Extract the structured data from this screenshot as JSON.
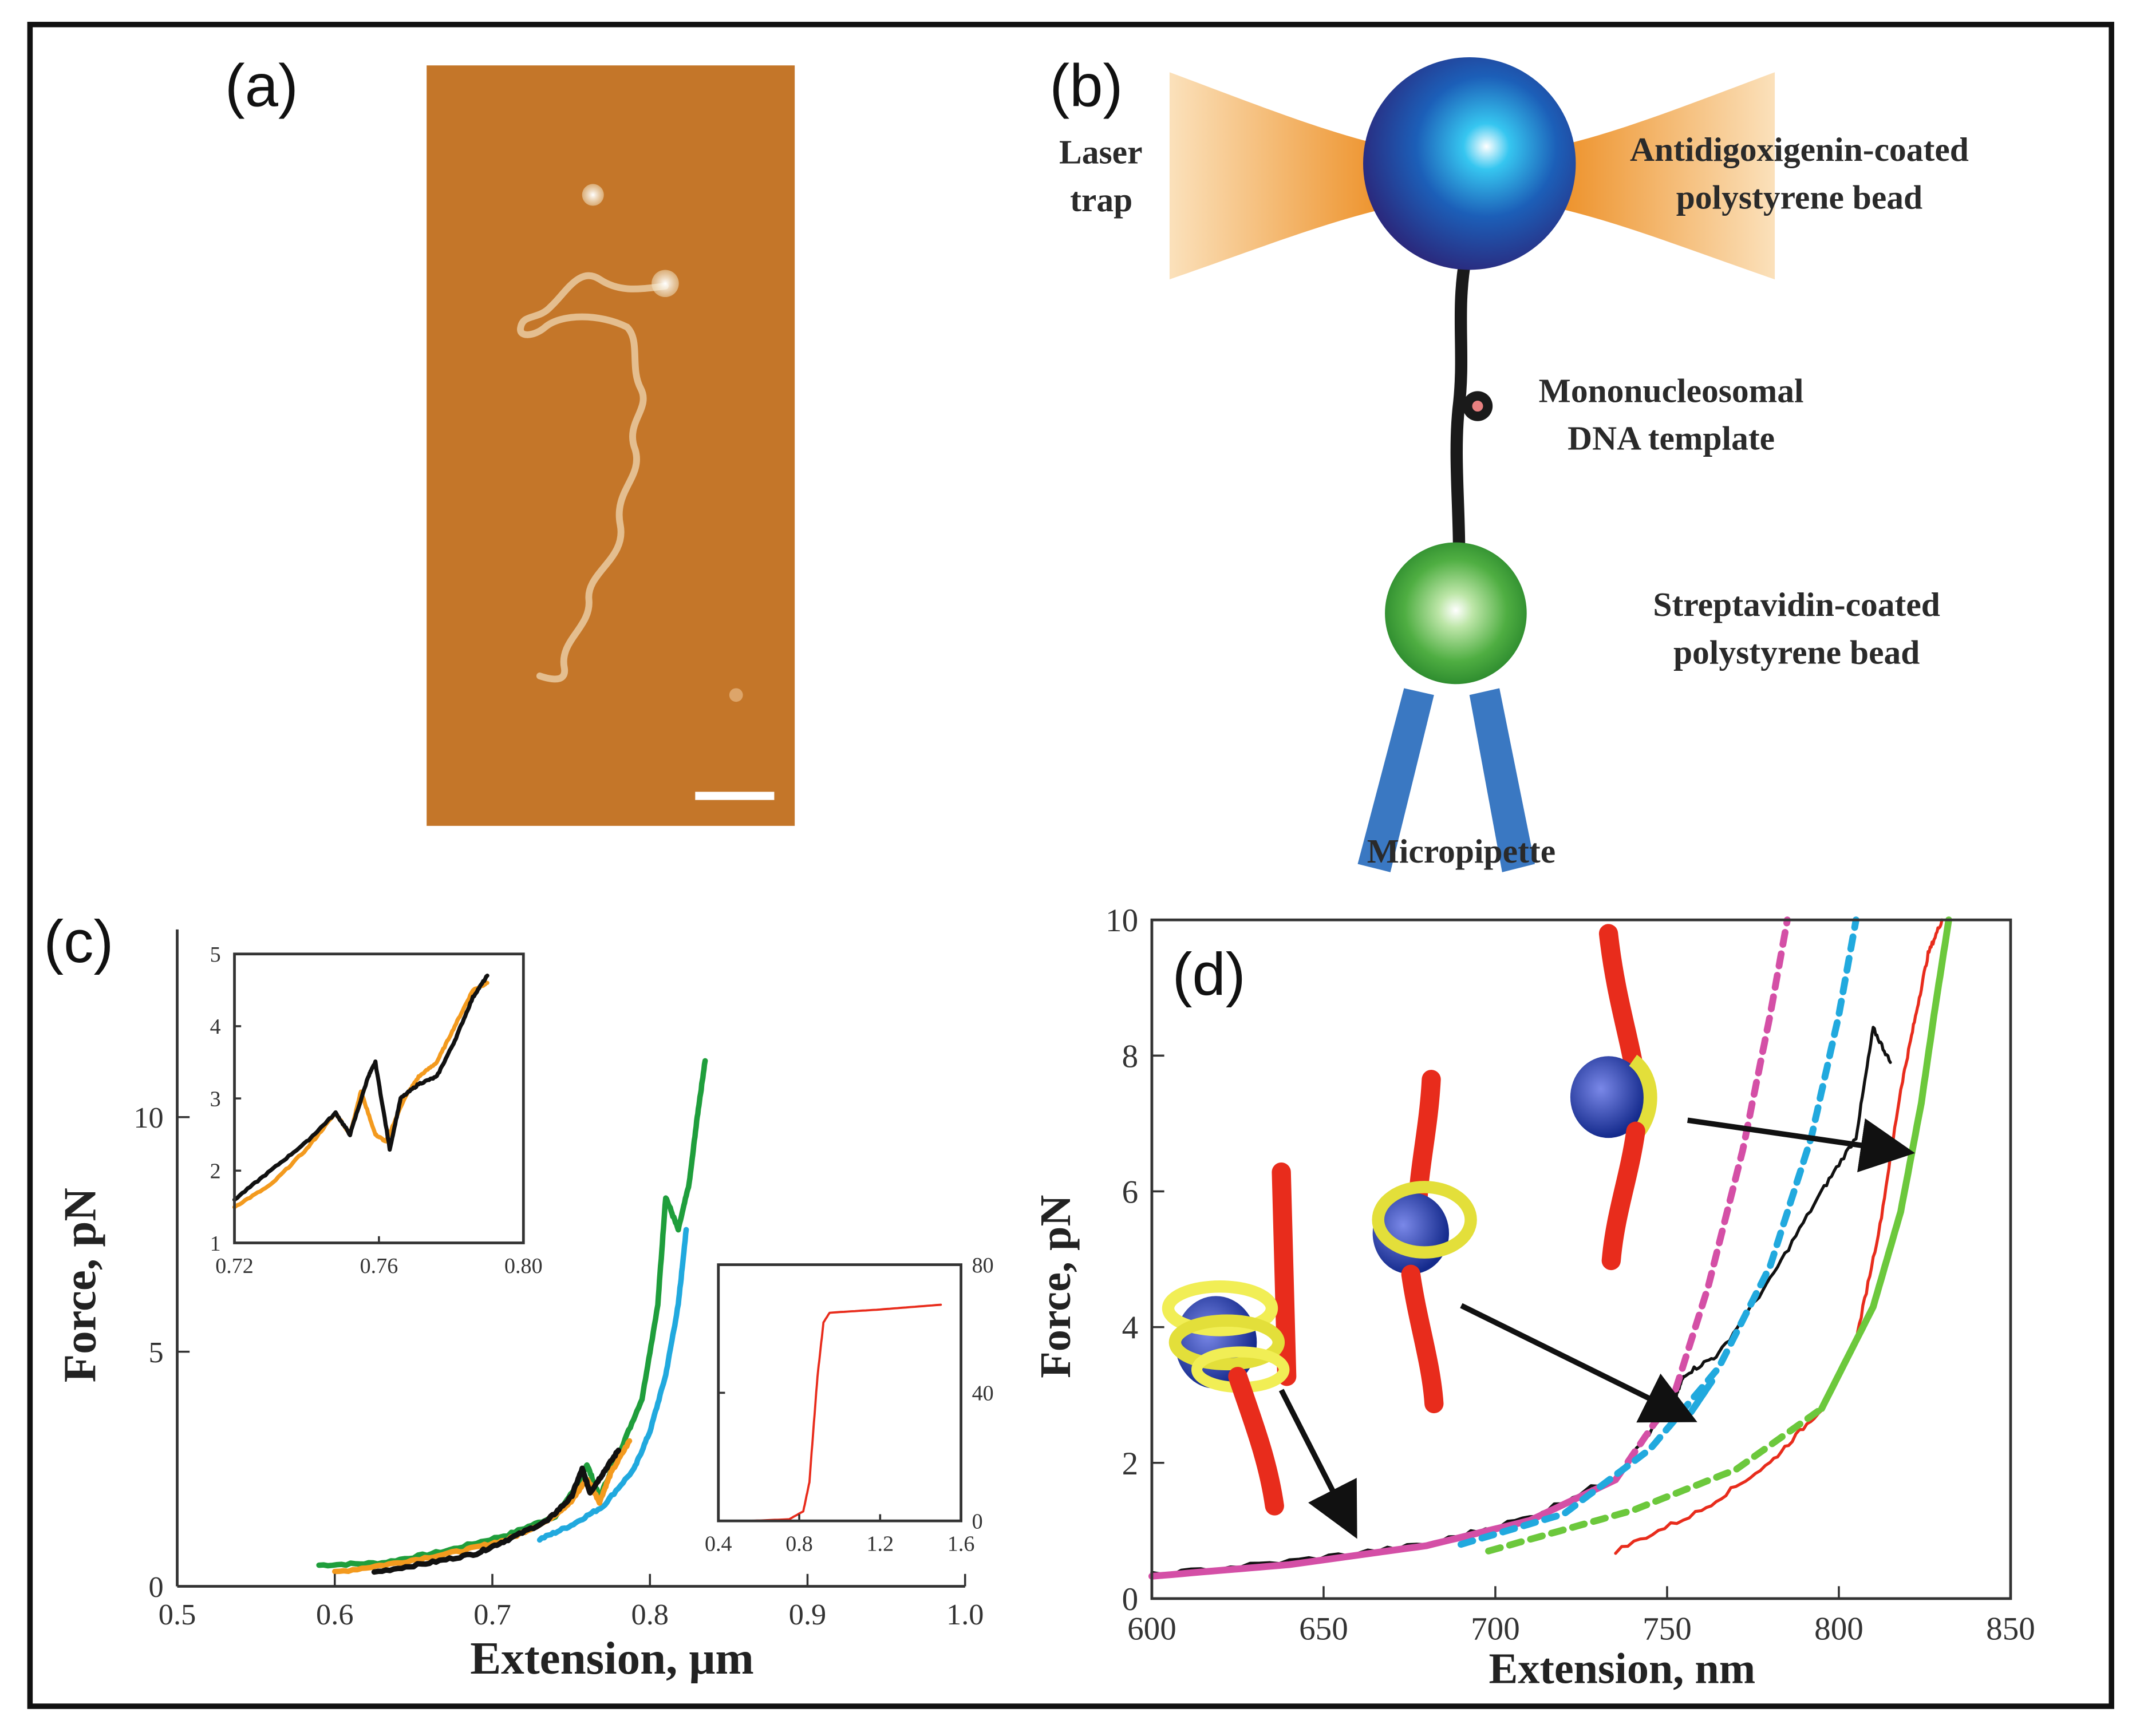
{
  "panels": {
    "a": {
      "label": "(a)"
    },
    "b": {
      "label": "(b)",
      "laser": [
        "Laser",
        "trap"
      ],
      "bead_top": [
        "Antidigoxigenin-coated",
        "polystyrene bead"
      ],
      "template": [
        "Mononucleosomal",
        "DNA template"
      ],
      "bead_bottom": [
        "Streptavidin-coated",
        "polystyrene bead"
      ],
      "pipette": "Micropipette"
    },
    "c": {
      "label": "(c)"
    },
    "d": {
      "label": "(d)"
    }
  },
  "colors": {
    "afm": "#c97a2c",
    "green": "#1f9e3c",
    "orange": "#f39a1e",
    "black": "#111111",
    "cyan": "#21a9de",
    "red": "#e82c1c",
    "magenta": "#d44fa6",
    "lime": "#6cc83c",
    "bead_blue": "#1f3c96",
    "bead_green": "#3aa23a",
    "pipette": "#3a78c2",
    "laser": "#f4a23c"
  },
  "chart_data": [
    {
      "id": "c-main",
      "type": "line",
      "xlabel": "Extension, μm",
      "ylabel": "Force, pN",
      "xlim": [
        0.5,
        1.0
      ],
      "ylim": [
        0,
        14
      ],
      "xticks": [
        "0.5",
        "0.6",
        "0.7",
        "0.8",
        "0.9",
        "1.0"
      ],
      "xtick_values": [
        0.5,
        0.6,
        0.7,
        0.8,
        0.9,
        1.0
      ],
      "yticks": [
        "0",
        "5",
        "10"
      ],
      "ytick_values": [
        0,
        5,
        10
      ],
      "series": [
        {
          "name": "green",
          "color": "#1f9e3c",
          "points": [
            [
              0.59,
              0.45
            ],
            [
              0.63,
              0.5
            ],
            [
              0.67,
              0.75
            ],
            [
              0.71,
              1.1
            ],
            [
              0.74,
              1.5
            ],
            [
              0.755,
              2.2
            ],
            [
              0.76,
              2.6
            ],
            [
              0.768,
              1.9
            ],
            [
              0.78,
              2.8
            ],
            [
              0.795,
              4.0
            ],
            [
              0.805,
              6.0
            ],
            [
              0.81,
              8.3
            ],
            [
              0.818,
              7.6
            ],
            [
              0.825,
              8.6
            ],
            [
              0.83,
              10.0
            ],
            [
              0.835,
              11.2
            ]
          ]
        },
        {
          "name": "cyan",
          "color": "#21a9de",
          "points": [
            [
              0.73,
              1.0
            ],
            [
              0.75,
              1.3
            ],
            [
              0.77,
              1.7
            ],
            [
              0.79,
              2.5
            ],
            [
              0.8,
              3.3
            ],
            [
              0.81,
              4.5
            ],
            [
              0.818,
              6.0
            ],
            [
              0.823,
              7.6
            ]
          ]
        },
        {
          "name": "orange",
          "color": "#f39a1e",
          "points": [
            [
              0.6,
              0.3
            ],
            [
              0.64,
              0.5
            ],
            [
              0.68,
              0.75
            ],
            [
              0.71,
              1.0
            ],
            [
              0.735,
              1.4
            ],
            [
              0.75,
              1.8
            ],
            [
              0.76,
              2.3
            ],
            [
              0.768,
              1.8
            ],
            [
              0.775,
              2.4
            ],
            [
              0.787,
              3.1
            ]
          ]
        },
        {
          "name": "black",
          "color": "#111111",
          "points": [
            [
              0.625,
              0.3
            ],
            [
              0.66,
              0.5
            ],
            [
              0.69,
              0.7
            ],
            [
              0.71,
              1.0
            ],
            [
              0.735,
              1.4
            ],
            [
              0.75,
              1.9
            ],
            [
              0.757,
              2.5
            ],
            [
              0.762,
              2.0
            ],
            [
              0.77,
              2.4
            ],
            [
              0.78,
              2.9
            ]
          ]
        }
      ]
    },
    {
      "id": "c-inset-left",
      "type": "line",
      "xlim": [
        0.72,
        0.8
      ],
      "ylim": [
        1,
        5
      ],
      "xticks": [
        "0.72",
        "0.76",
        "0.80"
      ],
      "xtick_values": [
        0.72,
        0.76,
        0.8
      ],
      "yticks": [
        "1",
        "2",
        "3",
        "4",
        "5"
      ],
      "ytick_values": [
        1,
        2,
        3,
        4,
        5
      ],
      "series": [
        {
          "name": "orange",
          "color": "#f39a1e",
          "points": [
            [
              0.72,
              1.5
            ],
            [
              0.73,
              1.8
            ],
            [
              0.74,
              2.3
            ],
            [
              0.748,
              2.8
            ],
            [
              0.752,
              2.5
            ],
            [
              0.755,
              3.1
            ],
            [
              0.759,
              2.5
            ],
            [
              0.762,
              2.4
            ],
            [
              0.767,
              3.0
            ],
            [
              0.771,
              3.3
            ],
            [
              0.776,
              3.5
            ],
            [
              0.781,
              4.0
            ],
            [
              0.786,
              4.5
            ],
            [
              0.79,
              4.6
            ]
          ]
        },
        {
          "name": "black",
          "color": "#111111",
          "points": [
            [
              0.72,
              1.6
            ],
            [
              0.73,
              2.0
            ],
            [
              0.74,
              2.4
            ],
            [
              0.748,
              2.8
            ],
            [
              0.752,
              2.5
            ],
            [
              0.757,
              3.3
            ],
            [
              0.759,
              3.5
            ],
            [
              0.763,
              2.3
            ],
            [
              0.766,
              3.0
            ],
            [
              0.771,
              3.2
            ],
            [
              0.776,
              3.3
            ],
            [
              0.781,
              3.8
            ],
            [
              0.786,
              4.4
            ],
            [
              0.79,
              4.7
            ]
          ]
        }
      ]
    },
    {
      "id": "c-inset-right",
      "type": "line",
      "xlim": [
        0.4,
        1.6
      ],
      "ylim": [
        0,
        80
      ],
      "xticks": [
        "0.4",
        "0.8",
        "1.2",
        "1.6"
      ],
      "xtick_values": [
        0.4,
        0.8,
        1.2,
        1.6
      ],
      "yticks": [
        "0",
        "40",
        "80"
      ],
      "ytick_values": [
        0,
        40,
        80
      ],
      "series": [
        {
          "name": "red",
          "color": "#e82c1c",
          "points": [
            [
              0.55,
              0
            ],
            [
              0.75,
              0.5
            ],
            [
              0.82,
              3
            ],
            [
              0.85,
              12
            ],
            [
              0.89,
              45
            ],
            [
              0.92,
              62
            ],
            [
              0.95,
              65
            ],
            [
              1.2,
              66
            ],
            [
              1.5,
              67.5
            ]
          ]
        }
      ]
    },
    {
      "id": "d",
      "type": "line",
      "xlabel": "Extension, nm",
      "ylabel": "Force, pN",
      "xlim": [
        600,
        850
      ],
      "ylim": [
        0,
        10
      ],
      "xticks": [
        "600",
        "650",
        "700",
        "750",
        "800",
        "850"
      ],
      "xtick_values": [
        600,
        650,
        700,
        750,
        800,
        850
      ],
      "yticks": [
        "0",
        "2",
        "4",
        "6",
        "8",
        "10"
      ],
      "ytick_values": [
        0,
        2,
        4,
        6,
        8,
        10
      ],
      "series": [
        {
          "name": "black data",
          "color": "#111111",
          "style": "noisy",
          "points": [
            [
              600,
              0.35
            ],
            [
              640,
              0.55
            ],
            [
              680,
              0.8
            ],
            [
              710,
              1.2
            ],
            [
              735,
              1.8
            ],
            [
              752,
              2.9
            ],
            [
              755,
              3.3
            ],
            [
              765,
              3.6
            ],
            [
              780,
              4.7
            ],
            [
              795,
              6.0
            ],
            [
              805,
              6.8
            ],
            [
              810,
              8.4
            ],
            [
              815,
              7.9
            ]
          ]
        },
        {
          "name": "red data",
          "color": "#e82c1c",
          "style": "noisy",
          "points": [
            [
              735,
              0.7
            ],
            [
              760,
              1.3
            ],
            [
              780,
              2.0
            ],
            [
              795,
              2.8
            ],
            [
              805,
              3.8
            ],
            [
              812,
              5.5
            ],
            [
              818,
              7.5
            ],
            [
              822,
              8.5
            ],
            [
              826,
              9.5
            ],
            [
              830,
              10.0
            ]
          ]
        },
        {
          "name": "magenta fit",
          "color": "#d44fa6",
          "style": "solid",
          "points": [
            [
              600,
              0.33
            ],
            [
              640,
              0.5
            ],
            [
              680,
              0.78
            ],
            [
              710,
              1.15
            ],
            [
              735,
              1.75
            ]
          ]
        },
        {
          "name": "magenta extension",
          "color": "#d44fa6",
          "style": "dashed",
          "points": [
            [
              735,
              1.75
            ],
            [
              752,
              3.0
            ],
            [
              762,
              4.6
            ],
            [
              772,
              6.6
            ],
            [
              780,
              8.6
            ],
            [
              785,
              10.0
            ]
          ]
        },
        {
          "name": "cyan fit",
          "color": "#21a9de",
          "style": "dashed",
          "points": [
            [
              690,
              0.8
            ],
            [
              720,
              1.25
            ],
            [
              745,
              2.2
            ],
            [
              765,
              3.4
            ],
            [
              780,
              4.9
            ],
            [
              792,
              6.8
            ],
            [
              800,
              8.6
            ],
            [
              805,
              10.0
            ]
          ]
        },
        {
          "name": "cyan solid",
          "color": "#21a9de",
          "style": "solid",
          "points": [
            [
              757,
              2.75
            ],
            [
              763,
              3.2
            ]
          ]
        },
        {
          "name": "green fit",
          "color": "#6cc83c",
          "style": "dashed",
          "points": [
            [
              698,
              0.7
            ],
            [
              740,
              1.3
            ],
            [
              770,
              1.9
            ],
            [
              795,
              2.8
            ]
          ]
        },
        {
          "name": "green solid",
          "color": "#6cc83c",
          "style": "solid",
          "points": [
            [
              795,
              2.8
            ],
            [
              810,
              4.3
            ],
            [
              818,
              5.7
            ],
            [
              824,
              7.3
            ],
            [
              828,
              8.7
            ],
            [
              832,
              10.0
            ]
          ]
        }
      ]
    }
  ]
}
